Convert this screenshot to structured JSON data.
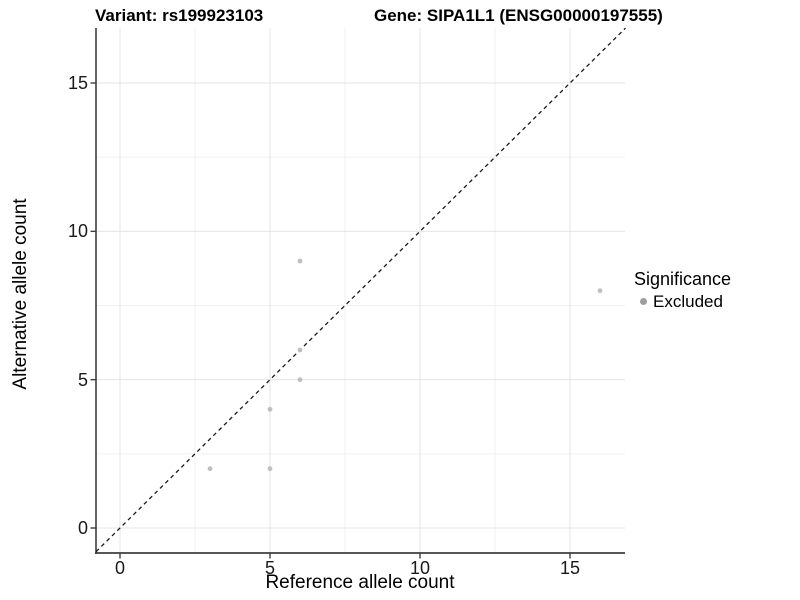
{
  "titles": {
    "variant": "Variant: rs199923103",
    "gene": "Gene: SIPA1L1 (ENSG00000197555)"
  },
  "legend": {
    "title": "Significance",
    "items": [
      {
        "label": "Excluded",
        "color": "#9e9e9e"
      }
    ]
  },
  "colors": {
    "background": "#ffffff",
    "grid_major": "#e4e4e4",
    "grid_minor": "#f0f0f0",
    "axis": "#3f3f3f",
    "reference_line": "#1a1a1a"
  },
  "chart_data": {
    "type": "scatter",
    "xlabel": "Reference allele count",
    "ylabel": "Alternative allele count",
    "xlim": [
      -0.8,
      16.85
    ],
    "ylim": [
      -0.85,
      16.85
    ],
    "xticks": [
      0,
      5,
      10,
      15
    ],
    "yticks": [
      0,
      5,
      10,
      15
    ],
    "xticks_minor": [
      2.5,
      7.5,
      12.5
    ],
    "yticks_minor": [
      2.5,
      7.5,
      12.5
    ],
    "grid": true,
    "legend_position": "right",
    "reference_line": {
      "type": "identity",
      "slope": 1,
      "intercept": 0,
      "style": "dashed"
    },
    "series": [
      {
        "name": "Excluded",
        "color": "#bfbfbf",
        "points": [
          [
            3,
            2
          ],
          [
            5,
            2
          ],
          [
            5,
            4
          ],
          [
            6,
            5
          ],
          [
            6,
            6
          ],
          [
            6,
            9
          ],
          [
            16,
            8
          ]
        ]
      }
    ]
  }
}
